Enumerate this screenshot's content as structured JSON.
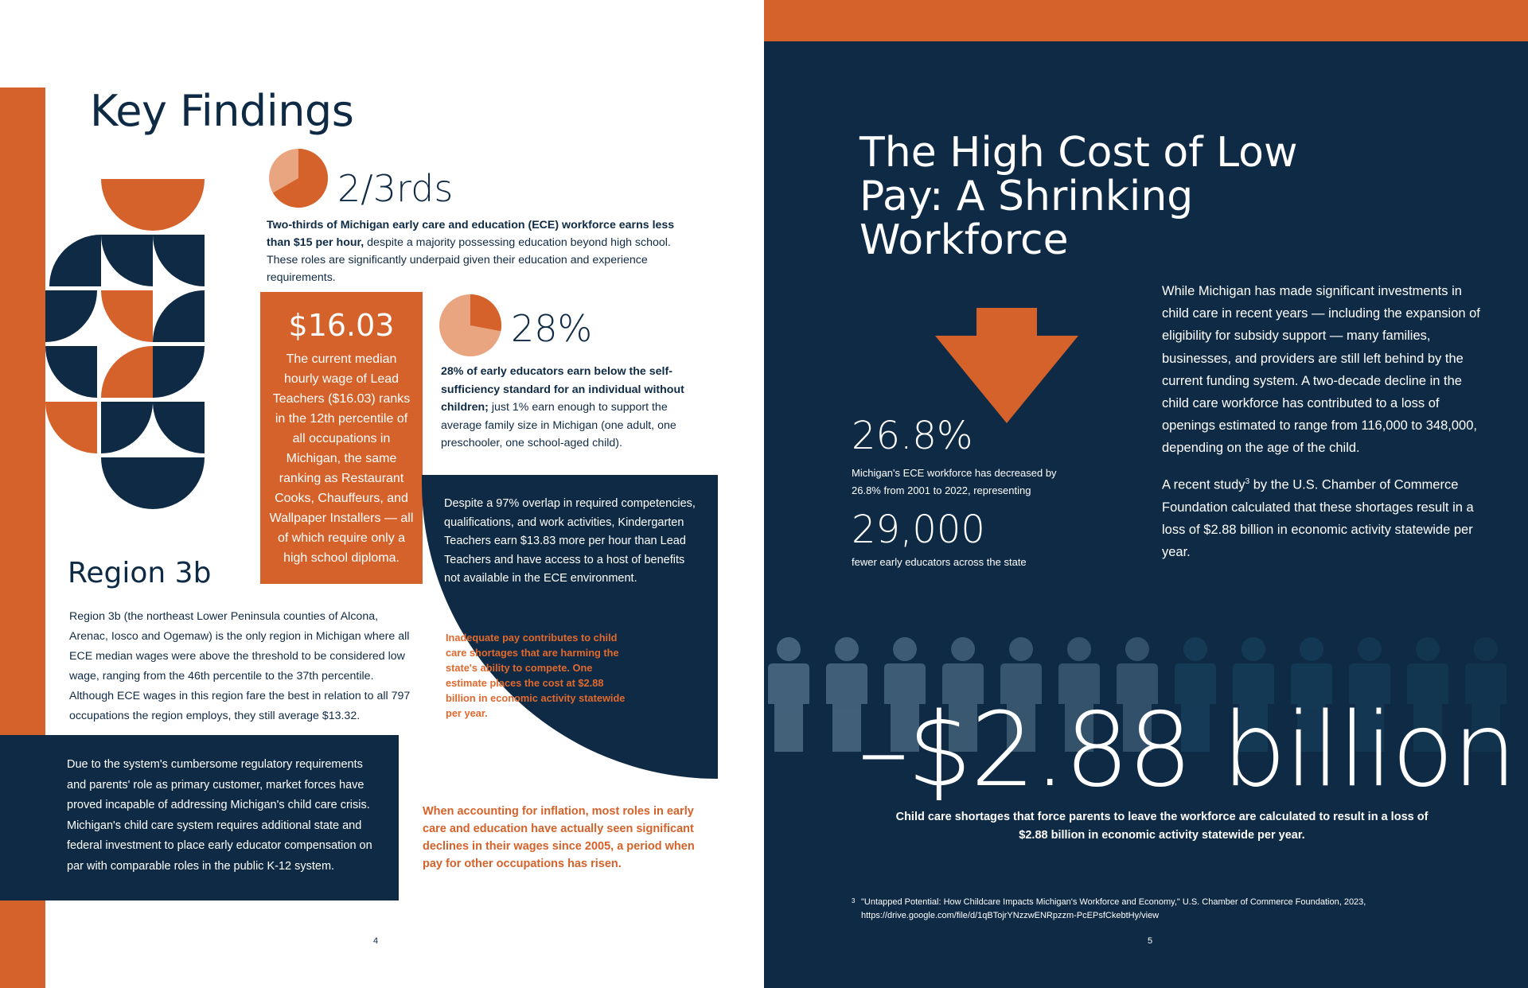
{
  "left": {
    "title": "Key Findings",
    "stat_two_thirds": "2/3rds",
    "two_thirds_bold": "Two-thirds of Michigan early care and education (ECE) workforce earns less than $15 per hour,",
    "two_thirds_rest": " despite a majority possessing education beyond high school. These roles are significantly underpaid given their education and experience requirements.",
    "wage_stat": "$16.03",
    "wage_text": "The current median hourly wage of Lead Teachers ($16.03) ranks in the 12th percentile of all occupations in Michigan, the same ranking as Restaurant Cooks, Chauffeurs, and Wallpaper Installers — all of which require only a high school diploma.",
    "stat_28": "28%",
    "p28_bold": "28% of early educators earn below the self-sufficiency standard for an individual without children;",
    "p28_rest": " just 1% earn enough to support the average family size in Michigan (one adult, one preschooler, one school-aged child).",
    "overlap_text": "Despite a 97% overlap in required competencies, qualifications, and work activities, Kindergarten Teachers earn $13.83 more per hour than Lead Teachers and have access to a host of benefits not available in the ECE environment.",
    "inadequate_text": "Inadequate pay contributes to child care shortages that are harming the state's ability to compete. One estimate places the cost at $2.88 billion in economic activity statewide per year.",
    "region_title": "Region 3b",
    "region_text": "Region 3b (the northeast Lower Peninsula counties of Alcona, Arenac, Iosco and Ogemaw) is the only region in Michigan where all ECE median wages were above the threshold to be considered low wage, ranging from the 46th percentile to the 37th percentile. Although ECE wages in this region fare the best in relation to all 797 occupations the region employs, they still average $13.32.",
    "navy_box_text": "Due to the system's cumbersome regulatory requirements and parents' role as primary customer, market forces have proved incapable of addressing Michigan's child care crisis. Michigan's child care system requires additional state and federal investment to place early educator compensation on par with comparable roles in the public K-12 system.",
    "inflation_text": "When accounting for inflation, most roles in early care and education have actually seen significant declines in their wages since 2005, a period when pay for other occupations has risen.",
    "page_number": "4"
  },
  "right": {
    "title": "The High Cost of Low Pay: A Shrinking Workforce",
    "stat_268": "26.8%",
    "text_268": "Michigan's ECE workforce has decreased by 26.8% from 2001 to 2022, representing",
    "stat_29k": "29,000",
    "text_29k": "fewer early educators across the state",
    "para1": "While Michigan has made significant investments in child care in recent years — including the expansion of eligibility for subsidy support — many families, businesses, and providers are still left behind by the current funding system. A two-decade decline in the child care workforce has contributed to a loss of openings estimated to range from 116,000 to 348,000, depending on the age of the child.",
    "para2_a": "A recent study",
    "para2_sup": "3",
    "para2_b": " by the U.S. Chamber of Commerce Foundation calculated that these shortages result in a loss of $2.88 billion in economic activity statewide per year.",
    "billion": "–$2.88 billion",
    "billion_caption": "Child care shortages that force parents to leave the workforce are calculated to result in a loss of $2.88 billion in economic activity statewide per year.",
    "footnote_num": "3",
    "footnote": "\"Untapped Potential: How Childcare Impacts Michigan's Workforce and Economy,\" U.S. Chamber of Commerce Foundation, 2023, https://drive.google.com/file/d/1qBTojrYNzzwENRpzzm-PcEPsfCkebtHy/view",
    "page_number": "5"
  },
  "colors": {
    "orange": "#d5622a",
    "navy": "#0f2a44",
    "pie_light": "#e9a57f"
  },
  "pies": {
    "two_thirds_fraction": 0.6667,
    "twenty_eight_fraction": 0.28
  }
}
